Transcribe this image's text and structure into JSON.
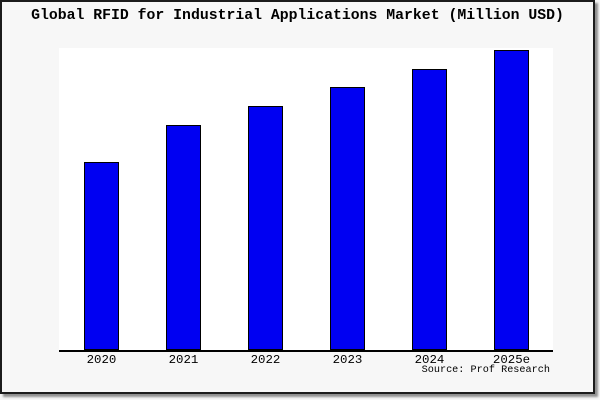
{
  "frame": {
    "background": "#f7f7f7",
    "border_color": "#1c1c1c",
    "shadow_color": "#8f8f8f"
  },
  "chart_data": {
    "type": "bar",
    "title": "Global RFID for Industrial Applications Market (Million USD)",
    "categories": [
      "2020",
      "2021",
      "2022",
      "2023",
      "2024",
      "2025e"
    ],
    "values": [
      62.7,
      75.0,
      81.3,
      87.7,
      93.5,
      100.0
    ],
    "values_note": "relative bar heights; no y-axis values shown in image (2025e = 100)",
    "xlabel": "",
    "ylabel": "",
    "grid": false,
    "legend": false,
    "bar_color": "#0000f2",
    "bar_border_color": "#000000",
    "plot_background": "#ffffff",
    "source": "Source: Prof Research"
  }
}
